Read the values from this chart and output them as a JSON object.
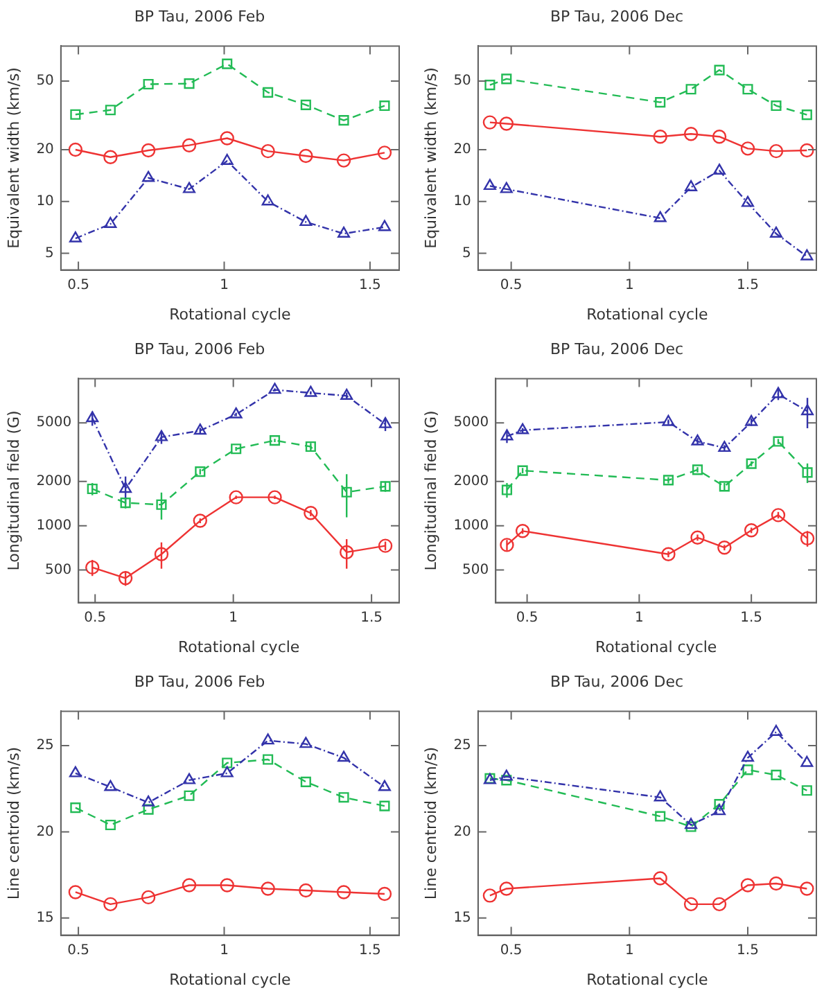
{
  "chart_data": [
    {
      "type": "line",
      "title": "BP Tau, 2006 Feb",
      "xlabel": "Rotational cycle",
      "ylabel": "Equivalent width (km/s)",
      "log": "y",
      "grid": false,
      "legend": false,
      "x": [
        0.49,
        0.61,
        0.74,
        0.88,
        1.01,
        1.15,
        1.28,
        1.41,
        1.55
      ],
      "xlim": [
        0.44,
        1.6
      ],
      "xticks": [
        0.5,
        1,
        1.5
      ],
      "ylim": [
        4,
        80
      ],
      "yticks": [
        5,
        10,
        20,
        50
      ],
      "series": [
        {
          "color": "#22bb55",
          "marker": "square",
          "line_style": "dashed",
          "values": [
            32,
            34,
            48,
            48.4,
            63,
            43,
            36.4,
            29.6,
            36
          ]
        },
        {
          "color": "#ee3333",
          "marker": "circle",
          "line_style": "solid",
          "values": [
            20,
            18.1,
            19.8,
            21.2,
            23.3,
            19.6,
            18.4,
            17.3,
            19.2
          ]
        },
        {
          "color": "#3333aa",
          "marker": "triangle",
          "line_style": "dotted",
          "values": [
            6.1,
            7.4,
            13.7,
            11.8,
            17.2,
            10,
            7.6,
            6.5,
            7.1
          ]
        }
      ]
    },
    {
      "type": "line",
      "title": "BP Tau, 2006 Dec",
      "xlabel": "Rotational cycle",
      "ylabel": "Equivalent width (km/s)",
      "log": "y",
      "grid": false,
      "legend": false,
      "x": [
        0.41,
        0.48,
        1.13,
        1.26,
        1.38,
        1.5,
        1.62,
        1.75
      ],
      "xlim": [
        0.36,
        1.79
      ],
      "xticks": [
        0.5,
        1,
        1.5
      ],
      "ylim": [
        4,
        80
      ],
      "yticks": [
        5,
        10,
        20,
        50
      ],
      "series": [
        {
          "color": "#22bb55",
          "marker": "square",
          "line_style": "dashed",
          "values": [
            47.5,
            51.5,
            37.7,
            44.9,
            58,
            44.9,
            36,
            31.9
          ]
        },
        {
          "color": "#ee3333",
          "marker": "circle",
          "line_style": "solid",
          "values": [
            28.8,
            28.3,
            23.8,
            24.7,
            23.8,
            20.3,
            19.6,
            19.8
          ]
        },
        {
          "color": "#3333aa",
          "marker": "triangle",
          "line_style": "dotted",
          "values": [
            12.3,
            11.8,
            8,
            12.1,
            15.1,
            9.8,
            6.5,
            4.8
          ]
        }
      ]
    },
    {
      "type": "line",
      "title": "BP Tau, 2006 Feb",
      "xlabel": "Rotational cycle",
      "ylabel": "Longitudinal field (G)",
      "log": "y",
      "grid": false,
      "legend": false,
      "x": [
        0.49,
        0.61,
        0.74,
        0.88,
        1.01,
        1.15,
        1.28,
        1.41,
        1.55
      ],
      "xlim": [
        0.44,
        1.6
      ],
      "xticks": [
        0.5,
        1,
        1.5
      ],
      "ylim": [
        300,
        10000
      ],
      "yticks": [
        500,
        1000,
        2000,
        5000
      ],
      "series": [
        {
          "color": "#3333aa",
          "marker": "triangle",
          "line_style": "dotted",
          "values": [
            5380,
            1780,
            4000,
            4430,
            5710,
            8390,
            8000,
            7640,
            4900
          ],
          "errors": [
            600,
            380,
            400,
            200,
            150,
            200,
            200,
            400,
            500
          ]
        },
        {
          "color": "#22bb55",
          "marker": "square",
          "line_style": "dashed",
          "values": [
            1780,
            1430,
            1390,
            2330,
            3330,
            3800,
            3450,
            1690,
            1850
          ],
          "errors": [
            170,
            120,
            290,
            100,
            100,
            100,
            200,
            550,
            150
          ]
        },
        {
          "color": "#ee3333",
          "marker": "circle",
          "line_style": "solid",
          "values": [
            520,
            440,
            640,
            1080,
            1560,
            1560,
            1220,
            660,
            730
          ],
          "errors": [
            65,
            50,
            130,
            40,
            40,
            40,
            60,
            150,
            50
          ]
        }
      ]
    },
    {
      "type": "line",
      "title": "BP Tau, 2006 Dec",
      "xlabel": "Rotational cycle",
      "ylabel": "Longitudinal field (G)",
      "log": "y",
      "grid": false,
      "legend": false,
      "x": [
        0.41,
        0.48,
        1.13,
        1.26,
        1.38,
        1.5,
        1.62,
        1.75
      ],
      "xlim": [
        0.36,
        1.79
      ],
      "xticks": [
        0.5,
        1,
        1.5
      ],
      "ylim": [
        300,
        10000
      ],
      "yticks": [
        500,
        1000,
        2000,
        5000
      ],
      "series": [
        {
          "color": "#3333aa",
          "marker": "triangle",
          "line_style": "dotted",
          "values": [
            4050,
            4460,
            5070,
            3740,
            3380,
            5070,
            7850,
            6000
          ],
          "errors": [
            400,
            150,
            200,
            200,
            150,
            300,
            700,
            1400
          ]
        },
        {
          "color": "#22bb55",
          "marker": "square",
          "line_style": "dashed",
          "values": [
            1750,
            2370,
            2040,
            2400,
            1850,
            2640,
            3740,
            2300
          ],
          "errors": [
            200,
            100,
            100,
            100,
            100,
            100,
            150,
            350
          ]
        },
        {
          "color": "#ee3333",
          "marker": "circle",
          "line_style": "solid",
          "values": [
            740,
            920,
            640,
            830,
            710,
            930,
            1180,
            820
          ],
          "errors": [
            60,
            40,
            30,
            40,
            30,
            40,
            60,
            100
          ]
        }
      ]
    },
    {
      "type": "line",
      "title": "BP Tau, 2006 Feb",
      "xlabel": "Rotational cycle",
      "ylabel": "Line centroid (km/s)",
      "grid": false,
      "legend": false,
      "x": [
        0.49,
        0.61,
        0.74,
        0.88,
        1.01,
        1.15,
        1.28,
        1.41,
        1.55
      ],
      "xlim": [
        0.44,
        1.6
      ],
      "xticks": [
        0.5,
        1,
        1.5
      ],
      "ylim": [
        14,
        27
      ],
      "yticks": [
        15,
        20,
        25
      ],
      "series": [
        {
          "color": "#3333aa",
          "marker": "triangle",
          "line_style": "dotted",
          "values": [
            23.4,
            22.6,
            21.7,
            23.0,
            23.4,
            25.3,
            25.1,
            24.3,
            22.6
          ]
        },
        {
          "color": "#22bb55",
          "marker": "square",
          "line_style": "dashed",
          "values": [
            21.4,
            20.4,
            21.3,
            22.1,
            24.0,
            24.2,
            22.9,
            22.0,
            21.5
          ]
        },
        {
          "color": "#ee3333",
          "marker": "circle",
          "line_style": "solid",
          "values": [
            16.5,
            15.8,
            16.2,
            16.9,
            16.9,
            16.7,
            16.6,
            16.5,
            16.4
          ]
        }
      ]
    },
    {
      "type": "line",
      "title": "BP Tau, 2006 Dec",
      "xlabel": "Rotational cycle",
      "ylabel": "Line centroid (km/s)",
      "grid": false,
      "legend": false,
      "x": [
        0.41,
        0.48,
        1.13,
        1.26,
        1.38,
        1.5,
        1.62,
        1.75
      ],
      "xlim": [
        0.36,
        1.79
      ],
      "xticks": [
        0.5,
        1,
        1.5
      ],
      "ylim": [
        14,
        27
      ],
      "yticks": [
        15,
        20,
        25
      ],
      "series": [
        {
          "color": "#3333aa",
          "marker": "triangle",
          "line_style": "dotted",
          "values": [
            23.0,
            23.2,
            22.0,
            20.4,
            21.2,
            24.3,
            25.8,
            24.0
          ]
        },
        {
          "color": "#22bb55",
          "marker": "square",
          "line_style": "dashed",
          "values": [
            23.1,
            23.0,
            20.9,
            20.3,
            21.6,
            23.6,
            23.3,
            22.4
          ]
        },
        {
          "color": "#ee3333",
          "marker": "circle",
          "line_style": "solid",
          "values": [
            16.3,
            16.7,
            17.3,
            15.8,
            15.8,
            16.9,
            17.0,
            16.7
          ]
        }
      ]
    }
  ]
}
